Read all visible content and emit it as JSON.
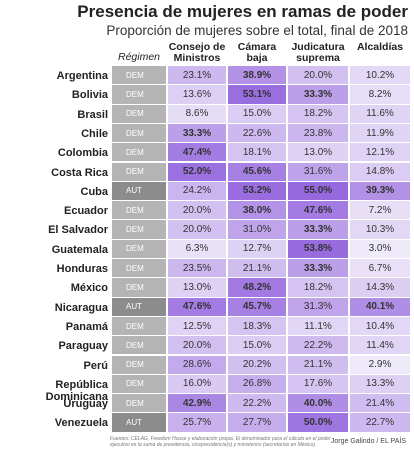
{
  "header": {
    "title": "Presencia de mujeres en ramas de poder",
    "subtitle": "Proporción de mujeres sobre el total, final de 2018"
  },
  "table": {
    "columns": [
      "Régimen",
      "Consejo de Ministros",
      "Cámara baja",
      "Judicatura suprema",
      "Alcaldías"
    ],
    "rows": [
      [
        "Argentina",
        "DEM",
        "23.1%",
        "38.9%",
        "20.0%",
        "10.2%"
      ],
      [
        "Bolivia",
        "DEM",
        "13.6%",
        "53.1%",
        "33.3%",
        "8.2%"
      ],
      [
        "Brasil",
        "DEM",
        "8.6%",
        "15.0%",
        "18.2%",
        "11.6%"
      ],
      [
        "Chile",
        "DEM",
        "33.3%",
        "22.6%",
        "23.8%",
        "11.9%"
      ],
      [
        "Colombia",
        "DEM",
        "47.4%",
        "18.1%",
        "13.0%",
        "12.1%"
      ],
      [
        "Costa Rica",
        "DEM",
        "52.0%",
        "45.6%",
        "31.6%",
        "14.8%"
      ],
      [
        "Cuba",
        "AUT",
        "24.2%",
        "53.2%",
        "55.0%",
        "39.3%"
      ],
      [
        "Ecuador",
        "DEM",
        "20.0%",
        "38.0%",
        "47.6%",
        "7.2%"
      ],
      [
        "El Salvador",
        "DEM",
        "20.0%",
        "31.0%",
        "33.3%",
        "10.3%"
      ],
      [
        "Guatemala",
        "DEM",
        "6.3%",
        "12.7%",
        "53.8%",
        "3.0%"
      ],
      [
        "Honduras",
        "DEM",
        "23.5%",
        "21.1%",
        "33.3%",
        "6.7%"
      ],
      [
        "México",
        "DEM",
        "13.0%",
        "48.2%",
        "18.2%",
        "14.3%"
      ],
      [
        "Nicaragua",
        "AUT",
        "47.6%",
        "45.7%",
        "31.3%",
        "40.1%"
      ],
      [
        "Panamá",
        "DEM",
        "12.5%",
        "18.3%",
        "11.1%",
        "10.4%"
      ],
      [
        "Paraguay",
        "DEM",
        "20.0%",
        "15.0%",
        "22.2%",
        "11.4%"
      ],
      [
        "Perú",
        "DEM",
        "28.6%",
        "20.2%",
        "21.1%",
        "2.9%"
      ],
      [
        "República Dominicana",
        "DEM",
        "16.0%",
        "26.8%",
        "17.6%",
        "13.3%"
      ],
      [
        "Uruguay",
        "DEM",
        "42.9%",
        "22.2%",
        "40.0%",
        "21.4%"
      ],
      [
        "Venezuela",
        "AUT",
        "25.7%",
        "27.7%",
        "50.0%",
        "22.7%"
      ]
    ]
  },
  "footer": {
    "source": "Fuentes: CELAG, Freedom House y elaboración propia. El denominador para el cálculo en el poder ejecutivo es la suma de presidencia, vicepresidencia(s) y ministerios (secretarías en México).",
    "credit": "Jorge Galindo / EL PAÍS"
  }
}
